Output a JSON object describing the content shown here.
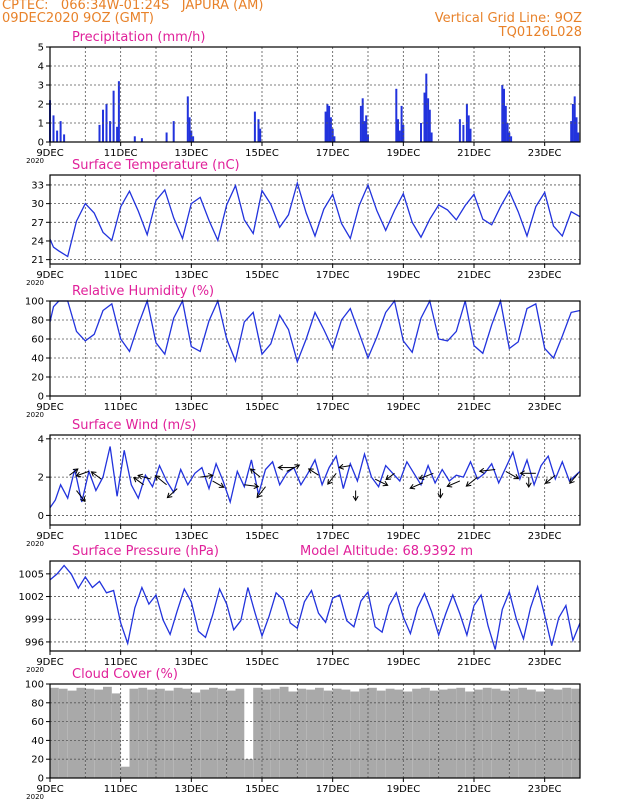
{
  "header": {
    "line1": "CPTEC:   066:34W-01:24S   JAPURA (AM)",
    "line2": "09DEC2020 9OZ (GMT)",
    "right1": "Vertical Grid Line: 9OZ",
    "right2": "TQ0126L028"
  },
  "colors": {
    "header": "#e8822a",
    "title": "#e0219a",
    "line": "#2233dd",
    "cloud": "#a9a9a9",
    "grid": "#555555"
  },
  "x_axis": {
    "labels": [
      "9DEC",
      "11DEC",
      "13DEC",
      "15DEC",
      "17DEC",
      "19DEC",
      "21DEC",
      "23DEC"
    ],
    "label_days": [
      9,
      11,
      13,
      15,
      17,
      19,
      21,
      23
    ],
    "year_label": "2020",
    "range_days": [
      9,
      24
    ]
  },
  "chart_data": [
    {
      "type": "bar",
      "id": "precip",
      "title": "Precipitation (mm/h)",
      "ylim": [
        0,
        5
      ],
      "yticks": [
        0,
        1,
        2,
        3,
        4,
        5
      ],
      "x": [
        9.0,
        9.1,
        9.2,
        9.3,
        9.4,
        10.4,
        10.5,
        10.6,
        10.7,
        10.8,
        10.9,
        10.95,
        11.4,
        11.6,
        12.3,
        12.5,
        12.9,
        12.95,
        13.0,
        13.05,
        14.8,
        14.9,
        14.95,
        16.8,
        16.85,
        16.9,
        16.95,
        17.0,
        17.05,
        17.8,
        17.85,
        17.9,
        17.95,
        18.0,
        18.8,
        18.85,
        18.9,
        18.95,
        19.0,
        19.5,
        19.6,
        19.65,
        19.7,
        19.75,
        19.8,
        20.6,
        20.7,
        20.8,
        20.85,
        20.9,
        21.8,
        21.85,
        21.9,
        21.95,
        22.0,
        22.05,
        23.75,
        23.8,
        23.85,
        23.9,
        23.95
      ],
      "values": [
        2.2,
        1.4,
        0.6,
        1.1,
        0.4,
        0.9,
        1.7,
        2.0,
        1.1,
        2.7,
        0.8,
        3.2,
        0.3,
        0.2,
        0.5,
        1.1,
        2.4,
        1.3,
        0.6,
        0.3,
        1.6,
        1.2,
        0.7,
        1.6,
        2.0,
        1.9,
        1.3,
        0.7,
        0.3,
        1.9,
        2.3,
        1.1,
        1.4,
        0.4,
        2.8,
        1.2,
        0.6,
        1.9,
        0.9,
        1.0,
        2.6,
        3.6,
        2.3,
        1.7,
        0.5,
        1.2,
        0.9,
        2.0,
        1.4,
        0.7,
        3.0,
        2.8,
        1.9,
        1.0,
        0.5,
        0.3,
        1.1,
        2.0,
        2.4,
        1.3,
        0.5
      ]
    },
    {
      "type": "line",
      "id": "temp",
      "title": "Surface Temperature (nC)",
      "ylim": [
        20.3,
        34.6
      ],
      "yticks": [
        21,
        24,
        27,
        30,
        33
      ],
      "x": [
        9.0,
        9.1,
        9.25,
        9.5,
        9.75,
        10.0,
        10.25,
        10.5,
        10.75,
        11.0,
        11.25,
        11.5,
        11.75,
        12.0,
        12.25,
        12.5,
        12.75,
        13.0,
        13.25,
        13.5,
        13.75,
        14.0,
        14.25,
        14.5,
        14.75,
        15.0,
        15.25,
        15.5,
        15.75,
        16.0,
        16.25,
        16.5,
        16.75,
        17.0,
        17.25,
        17.5,
        17.75,
        18.0,
        18.25,
        18.5,
        18.75,
        19.0,
        19.25,
        19.5,
        19.75,
        20.0,
        20.25,
        20.5,
        20.75,
        21.0,
        21.25,
        21.5,
        21.75,
        22.0,
        22.25,
        22.5,
        22.75,
        23.0,
        23.25,
        23.5,
        23.75,
        24.0
      ],
      "values": [
        24.3,
        23.0,
        22.4,
        21.5,
        27.2,
        30.0,
        28.5,
        25.4,
        24.1,
        29.5,
        32.0,
        28.8,
        25.0,
        30.5,
        32.2,
        27.7,
        24.4,
        30.0,
        31.0,
        27.3,
        24.1,
        29.8,
        32.9,
        27.4,
        25.2,
        32.1,
        29.9,
        26.2,
        28.2,
        33.3,
        28.5,
        24.8,
        29.1,
        31.5,
        26.8,
        24.4,
        29.7,
        33.0,
        28.9,
        25.7,
        28.9,
        31.6,
        27.0,
        24.6,
        27.5,
        29.8,
        29.0,
        27.4,
        29.7,
        31.5,
        27.5,
        26.6,
        29.5,
        32.0,
        28.7,
        24.8,
        29.5,
        31.8,
        26.4,
        24.8,
        28.7,
        27.9
      ]
    },
    {
      "type": "line",
      "id": "rh",
      "title": "Relative Humidity (%)",
      "ylim": [
        0,
        100
      ],
      "yticks": [
        0,
        20,
        40,
        60,
        80,
        100
      ],
      "x": [
        9.0,
        9.1,
        9.25,
        9.5,
        9.75,
        10.0,
        10.25,
        10.5,
        10.75,
        11.0,
        11.25,
        11.5,
        11.75,
        12.0,
        12.25,
        12.5,
        12.75,
        13.0,
        13.25,
        13.5,
        13.75,
        14.0,
        14.25,
        14.5,
        14.75,
        15.0,
        15.25,
        15.5,
        15.75,
        16.0,
        16.25,
        16.5,
        16.75,
        17.0,
        17.25,
        17.5,
        17.75,
        18.0,
        18.25,
        18.5,
        18.75,
        19.0,
        19.25,
        19.5,
        19.75,
        20.0,
        20.25,
        20.5,
        20.75,
        21.0,
        21.25,
        21.5,
        21.75,
        22.0,
        22.25,
        22.5,
        22.75,
        23.0,
        23.25,
        23.5,
        23.75,
        24.0
      ],
      "values": [
        78,
        94,
        100,
        100,
        68,
        58,
        65,
        90,
        97,
        60,
        47,
        75,
        100,
        56,
        44,
        82,
        100,
        52,
        47,
        79,
        100,
        60,
        37,
        78,
        88,
        44,
        55,
        85,
        70,
        36,
        60,
        88,
        70,
        50,
        80,
        92,
        66,
        40,
        62,
        88,
        100,
        58,
        46,
        82,
        100,
        60,
        58,
        68,
        100,
        53,
        45,
        75,
        100,
        50,
        57,
        92,
        97,
        50,
        40,
        63,
        88,
        90
      ]
    },
    {
      "type": "line",
      "id": "wind",
      "title": "Surface Wind (m/s)",
      "ylim": [
        -0.5,
        4.2
      ],
      "yticks": [
        0,
        2,
        4
      ],
      "x": [
        9.0,
        9.15,
        9.3,
        9.5,
        9.7,
        9.9,
        10.1,
        10.3,
        10.5,
        10.7,
        10.9,
        11.1,
        11.3,
        11.5,
        11.7,
        11.9,
        12.1,
        12.3,
        12.5,
        12.7,
        12.9,
        13.1,
        13.3,
        13.5,
        13.7,
        13.9,
        14.1,
        14.3,
        14.5,
        14.7,
        14.9,
        15.1,
        15.3,
        15.5,
        15.7,
        15.9,
        16.1,
        16.3,
        16.5,
        16.7,
        16.9,
        17.1,
        17.3,
        17.5,
        17.7,
        17.9,
        18.1,
        18.3,
        18.5,
        18.7,
        18.9,
        19.1,
        19.3,
        19.5,
        19.7,
        19.9,
        20.1,
        20.3,
        20.5,
        20.7,
        20.9,
        21.1,
        21.3,
        21.5,
        21.7,
        21.9,
        22.1,
        22.3,
        22.5,
        22.7,
        22.9,
        23.1,
        23.3,
        23.5,
        23.7,
        24.0
      ],
      "values": [
        0.4,
        0.8,
        1.6,
        0.9,
        2.4,
        0.7,
        2.3,
        1.3,
        2.0,
        3.6,
        1.0,
        3.4,
        1.6,
        0.9,
        2.1,
        1.5,
        2.6,
        1.8,
        1.2,
        2.4,
        1.6,
        2.2,
        2.5,
        1.4,
        2.7,
        1.8,
        0.7,
        2.3,
        1.5,
        2.9,
        1.1,
        2.4,
        2.8,
        1.6,
        2.2,
        2.5,
        1.6,
        2.2,
        2.9,
        1.6,
        2.5,
        3.1,
        1.4,
        2.7,
        1.8,
        3.2,
        2.0,
        1.5,
        2.6,
        2.2,
        1.8,
        2.8,
        2.2,
        1.6,
        2.6,
        1.7,
        2.4,
        1.8,
        2.1,
        2.0,
        2.8,
        1.9,
        2.2,
        2.7,
        1.7,
        2.5,
        3.3,
        1.9,
        2.9,
        1.6,
        2.6,
        3.1,
        1.9,
        2.8,
        1.8,
        2.3
      ],
      "vectors": [
        {
          "x": 9.55,
          "y": 2.1,
          "dx": 0.3,
          "dy": -0.35
        },
        {
          "x": 9.75,
          "y": 1.3,
          "dx": 0.3,
          "dy": 0.6
        },
        {
          "x": 10.1,
          "y": 2.3,
          "dx": -0.45,
          "dy": 0.25
        },
        {
          "x": 10.45,
          "y": 1.9,
          "dx": -0.35,
          "dy": -0.4
        },
        {
          "x": 11.65,
          "y": 1.6,
          "dx": -0.35,
          "dy": -0.4
        },
        {
          "x": 11.85,
          "y": 1.9,
          "dx": -0.45,
          "dy": -0.2
        },
        {
          "x": 12.3,
          "y": 1.6,
          "dx": -0.4,
          "dy": -0.5
        },
        {
          "x": 12.6,
          "y": 1.4,
          "dx": -0.35,
          "dy": 0.5
        },
        {
          "x": 13.25,
          "y": 2.0,
          "dx": 0.45,
          "dy": -0.1
        },
        {
          "x": 13.6,
          "y": 1.8,
          "dx": 0.4,
          "dy": 0.35
        },
        {
          "x": 14.5,
          "y": 1.6,
          "dx": 0.5,
          "dy": 0.1
        },
        {
          "x": 14.95,
          "y": 2.0,
          "dx": -0.35,
          "dy": -0.45
        },
        {
          "x": 15.1,
          "y": 1.5,
          "dx": -0.3,
          "dy": 0.6
        },
        {
          "x": 15.7,
          "y": 2.3,
          "dx": 0.45,
          "dy": -0.35
        },
        {
          "x": 15.9,
          "y": 2.5,
          "dx": -0.55,
          "dy": 0.0
        },
        {
          "x": 16.6,
          "y": 2.1,
          "dx": -0.35,
          "dy": -0.35
        },
        {
          "x": 17.1,
          "y": 2.2,
          "dx": -0.3,
          "dy": 0.6
        },
        {
          "x": 17.5,
          "y": 2.6,
          "dx": -0.4,
          "dy": 0.1
        },
        {
          "x": 17.65,
          "y": 1.3,
          "dx": 0.0,
          "dy": 0.55
        },
        {
          "x": 18.2,
          "y": 1.9,
          "dx": 0.45,
          "dy": 0.35
        },
        {
          "x": 18.75,
          "y": 2.2,
          "dx": -0.3,
          "dy": 0.35
        },
        {
          "x": 19.55,
          "y": 1.7,
          "dx": -0.45,
          "dy": 0.3
        },
        {
          "x": 19.85,
          "y": 2.2,
          "dx": -0.5,
          "dy": 0.3
        },
        {
          "x": 20.05,
          "y": 1.4,
          "dx": 0.0,
          "dy": 0.5
        },
        {
          "x": 20.6,
          "y": 1.8,
          "dx": -0.45,
          "dy": 0.3
        },
        {
          "x": 21.1,
          "y": 2.0,
          "dx": -0.4,
          "dy": 0.5
        },
        {
          "x": 21.6,
          "y": 2.4,
          "dx": -0.55,
          "dy": 0.1
        },
        {
          "x": 21.9,
          "y": 2.3,
          "dx": 0.45,
          "dy": 0.4
        },
        {
          "x": 22.55,
          "y": 2.0,
          "dx": 0.0,
          "dy": 0.55
        },
        {
          "x": 22.75,
          "y": 2.2,
          "dx": -0.55,
          "dy": 0.0
        },
        {
          "x": 23.3,
          "y": 2.1,
          "dx": -0.35,
          "dy": 0.45
        },
        {
          "x": 23.95,
          "y": 2.2,
          "dx": -0.3,
          "dy": 0.55
        }
      ]
    },
    {
      "type": "line",
      "id": "pres",
      "title": "Surface Pressure (hPa)",
      "annotation": "Model Altitude: 68.9392 m",
      "ylim": [
        994.8,
        1006.7
      ],
      "yticks": [
        996,
        999,
        1002,
        1005
      ],
      "x": [
        9.0,
        9.2,
        9.4,
        9.6,
        9.8,
        10.0,
        10.2,
        10.4,
        10.6,
        10.8,
        11.0,
        11.2,
        11.4,
        11.6,
        11.8,
        12.0,
        12.2,
        12.4,
        12.6,
        12.8,
        13.0,
        13.2,
        13.4,
        13.6,
        13.8,
        14.0,
        14.2,
        14.4,
        14.6,
        14.8,
        15.0,
        15.2,
        15.4,
        15.6,
        15.8,
        16.0,
        16.2,
        16.4,
        16.6,
        16.8,
        17.0,
        17.2,
        17.4,
        17.6,
        17.8,
        18.0,
        18.2,
        18.4,
        18.6,
        18.8,
        19.0,
        19.2,
        19.4,
        19.6,
        19.8,
        20.0,
        20.2,
        20.4,
        20.6,
        20.8,
        21.0,
        21.2,
        21.4,
        21.6,
        21.8,
        22.0,
        22.2,
        22.4,
        22.6,
        22.8,
        23.0,
        23.2,
        23.4,
        23.6,
        23.8,
        24.0
      ],
      "values": [
        1004.2,
        1005.0,
        1006.1,
        1005.0,
        1003.1,
        1004.6,
        1003.2,
        1004.0,
        1002.5,
        1002.8,
        998.5,
        995.8,
        1000.5,
        1003.2,
        1001.0,
        1002.2,
        998.9,
        997.0,
        1000.1,
        1003.0,
        1001.3,
        997.4,
        996.6,
        999.5,
        1003.0,
        1001.0,
        997.6,
        998.8,
        1003.2,
        999.9,
        996.8,
        999.4,
        1002.5,
        1001.6,
        998.5,
        997.8,
        1001.3,
        1002.8,
        999.8,
        998.6,
        1001.8,
        1002.2,
        998.8,
        998.0,
        1001.4,
        1002.6,
        998.0,
        997.3,
        1000.8,
        1002.5,
        999.3,
        997.1,
        1000.5,
        1002.4,
        1000.0,
        996.9,
        999.7,
        1002.2,
        999.7,
        996.9,
        1000.8,
        1002.2,
        998.1,
        995.0,
        1000.3,
        1002.6,
        999.0,
        996.4,
        1000.5,
        1003.3,
        999.5,
        995.5,
        999.2,
        1000.8,
        996.2,
        998.5
      ]
    },
    {
      "type": "bar",
      "id": "cloud",
      "title": "Cloud Cover (%)",
      "ylim": [
        0,
        100
      ],
      "yticks": [
        0,
        20,
        40,
        60,
        80,
        100
      ],
      "x": [
        9.0,
        9.25,
        9.5,
        9.75,
        10.0,
        10.25,
        10.5,
        10.75,
        11.0,
        11.25,
        11.5,
        11.75,
        12.0,
        12.25,
        12.5,
        12.75,
        13.0,
        13.25,
        13.5,
        13.75,
        14.0,
        14.25,
        14.5,
        14.75,
        15.0,
        15.25,
        15.5,
        15.75,
        16.0,
        16.25,
        16.5,
        16.75,
        17.0,
        17.25,
        17.5,
        17.75,
        18.0,
        18.25,
        18.5,
        18.75,
        19.0,
        19.25,
        19.5,
        19.75,
        20.0,
        20.25,
        20.5,
        20.75,
        21.0,
        21.25,
        21.5,
        21.75,
        22.0,
        22.25,
        22.5,
        22.75,
        23.0,
        23.25,
        23.5,
        23.75
      ],
      "values": [
        96,
        95,
        93,
        96,
        95,
        94,
        97,
        90,
        12,
        95,
        96,
        94,
        95,
        93,
        96,
        95,
        91,
        94,
        96,
        95,
        93,
        95,
        20,
        96,
        94,
        95,
        97,
        92,
        95,
        94,
        96,
        93,
        95,
        94,
        92,
        95,
        96,
        93,
        95,
        94,
        92,
        95,
        96,
        93,
        94,
        95,
        96,
        92,
        94,
        96,
        95,
        93,
        95,
        96,
        94,
        92,
        95,
        94,
        96,
        95
      ]
    }
  ]
}
